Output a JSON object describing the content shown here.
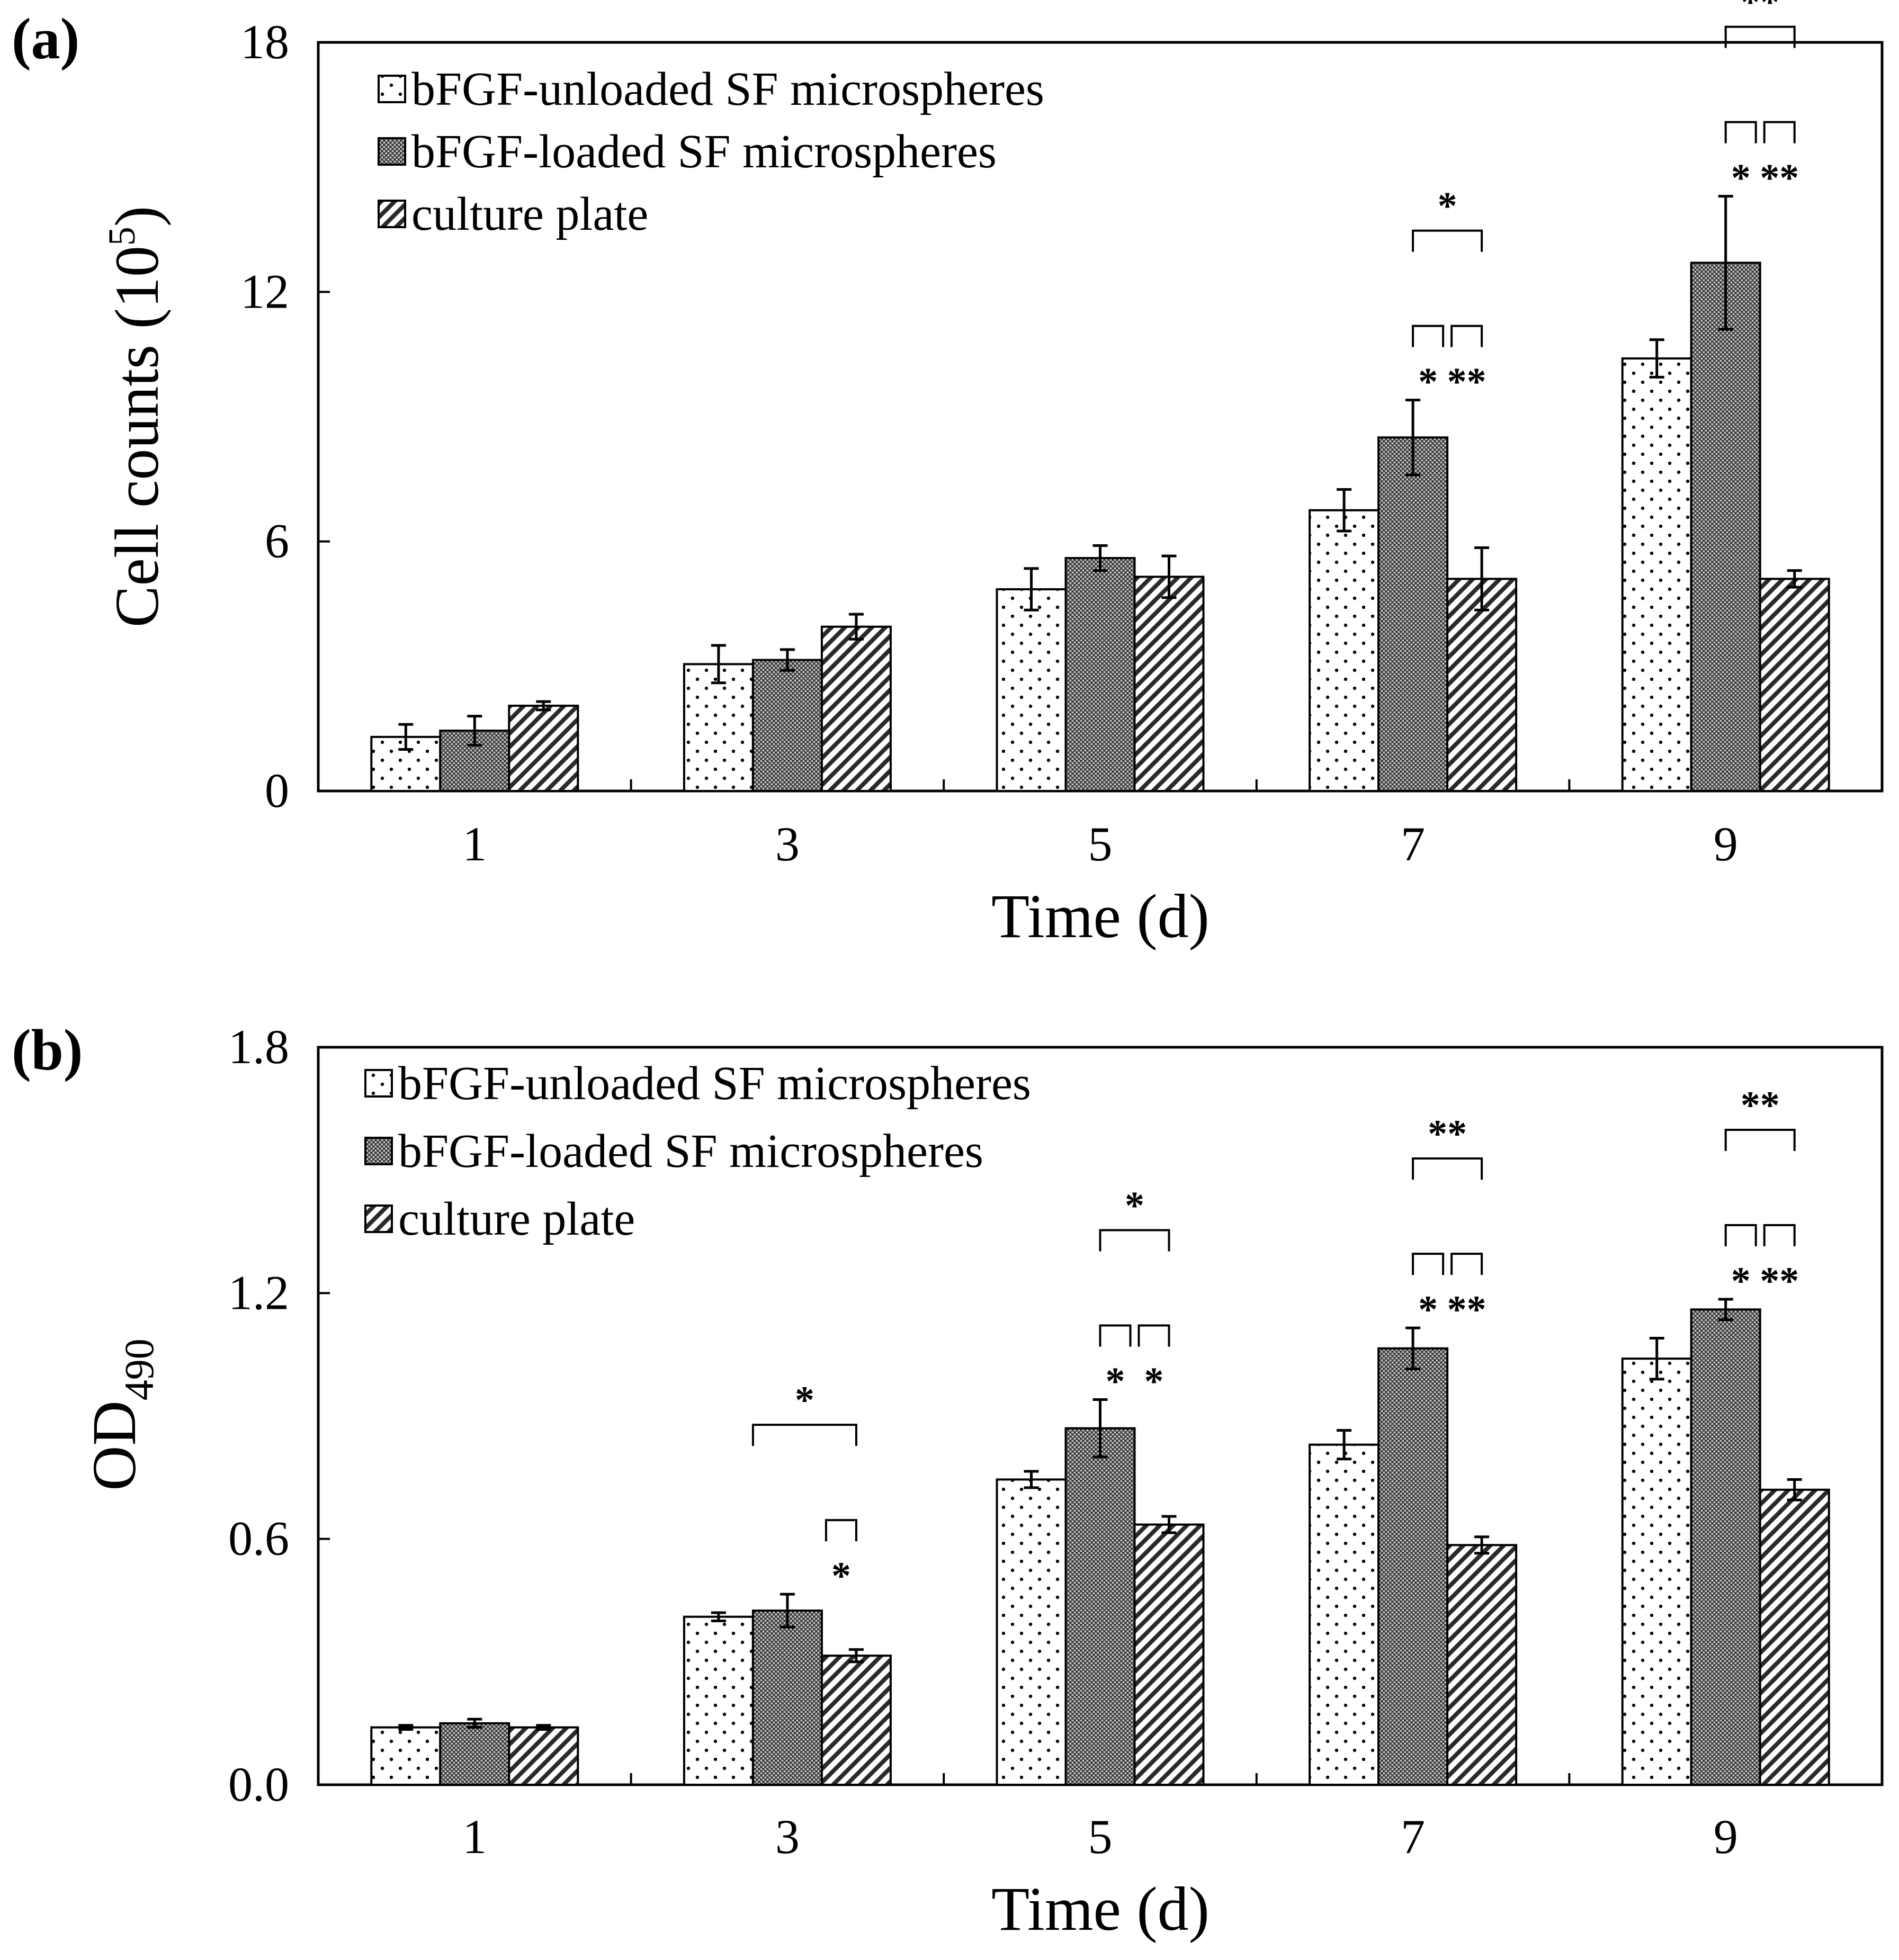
{
  "colors": {
    "ink": "#000000",
    "background": "#ffffff",
    "plot_background": "#ffffff"
  },
  "chart_data": [
    {
      "type": "bar",
      "panel_label": "(a)",
      "categories": [
        "1",
        "3",
        "5",
        "7",
        "9"
      ],
      "xlabel": "Time (d)",
      "ylabel": "Cell counts (10",
      "ylabel_sup": "5",
      "ylabel_tail": ")",
      "ylim": [
        0,
        18
      ],
      "yticks": [
        "0",
        "6",
        "12",
        "18"
      ],
      "yticks_values": [
        0,
        6,
        12,
        18
      ],
      "legend_position": "top-left",
      "series": [
        {
          "name": "bFGF-unloaded SF microspheres",
          "pattern": "dots",
          "values": [
            1.3,
            3.05,
            4.85,
            6.75,
            10.4
          ],
          "errors": [
            0.3,
            0.45,
            0.5,
            0.5,
            0.45
          ]
        },
        {
          "name": "bFGF-loaded SF microspheres",
          "pattern": "dense",
          "values": [
            1.45,
            3.15,
            5.6,
            8.5,
            12.7
          ],
          "errors": [
            0.35,
            0.25,
            0.3,
            0.9,
            1.6
          ]
        },
        {
          "name": "culture plate",
          "pattern": "hatch",
          "values": [
            2.05,
            3.95,
            5.15,
            5.1,
            5.1
          ],
          "errors": [
            0.1,
            0.3,
            0.5,
            0.75,
            0.2
          ]
        }
      ],
      "significance": [
        {
          "category": "7",
          "from": 1,
          "to": 2,
          "level": 3,
          "label": "*"
        },
        {
          "category": "7",
          "from": 1,
          "to": 1.5,
          "level": 1,
          "label": "*"
        },
        {
          "category": "7",
          "from": 1.5,
          "to": 2,
          "level": 1,
          "label": "**"
        },
        {
          "category": "9",
          "from": 1,
          "to": 2,
          "level": 3,
          "label": "**"
        },
        {
          "category": "9",
          "from": 1,
          "to": 1.5,
          "level": 1,
          "label": "*"
        },
        {
          "category": "9",
          "from": 1.5,
          "to": 2,
          "level": 1,
          "label": "**"
        }
      ]
    },
    {
      "type": "bar",
      "panel_label": "(b)",
      "categories": [
        "1",
        "3",
        "5",
        "7",
        "9"
      ],
      "xlabel": "Time (d)",
      "ylabel": "OD",
      "ylabel_sub": "490",
      "ylim": [
        0,
        1.8
      ],
      "yticks": [
        "0.0",
        "0.6",
        "1.2",
        "1.8"
      ],
      "yticks_values": [
        0,
        0.6,
        1.2,
        1.8
      ],
      "legend_position": "top-left",
      "series": [
        {
          "name": "bFGF-unloaded SF microspheres",
          "pattern": "dots",
          "values": [
            0.14,
            0.41,
            0.745,
            0.83,
            1.04
          ],
          "errors": [
            0.005,
            0.01,
            0.02,
            0.035,
            0.05
          ]
        },
        {
          "name": "bFGF-loaded SF microspheres",
          "pattern": "dense",
          "values": [
            0.15,
            0.425,
            0.87,
            1.065,
            1.16
          ],
          "errors": [
            0.01,
            0.04,
            0.07,
            0.05,
            0.025
          ]
        },
        {
          "name": "culture plate",
          "pattern": "hatch",
          "values": [
            0.14,
            0.315,
            0.635,
            0.585,
            0.72
          ],
          "errors": [
            0.005,
            0.015,
            0.02,
            0.02,
            0.025
          ]
        }
      ],
      "significance": [
        {
          "category": "3",
          "from": 0.5,
          "to": 2,
          "level": 3,
          "label": "*"
        },
        {
          "category": "3",
          "from": 1.5,
          "to": 2,
          "level": 1,
          "label": "*"
        },
        {
          "category": "5",
          "from": 1,
          "to": 2,
          "level": 3,
          "label": "*"
        },
        {
          "category": "5",
          "from": 1,
          "to": 1.5,
          "level": 1,
          "label": "*"
        },
        {
          "category": "5",
          "from": 1.5,
          "to": 2,
          "level": 1,
          "label": "*"
        },
        {
          "category": "7",
          "from": 1,
          "to": 2,
          "level": 3,
          "label": "**"
        },
        {
          "category": "7",
          "from": 1,
          "to": 1.5,
          "level": 1,
          "label": "*"
        },
        {
          "category": "7",
          "from": 1.5,
          "to": 2,
          "level": 1,
          "label": "**"
        },
        {
          "category": "9",
          "from": 1,
          "to": 2,
          "level": 3,
          "label": "**"
        },
        {
          "category": "9",
          "from": 1,
          "to": 1.5,
          "level": 1,
          "label": "*"
        },
        {
          "category": "9",
          "from": 1.5,
          "to": 2,
          "level": 1,
          "label": "**"
        }
      ]
    }
  ]
}
